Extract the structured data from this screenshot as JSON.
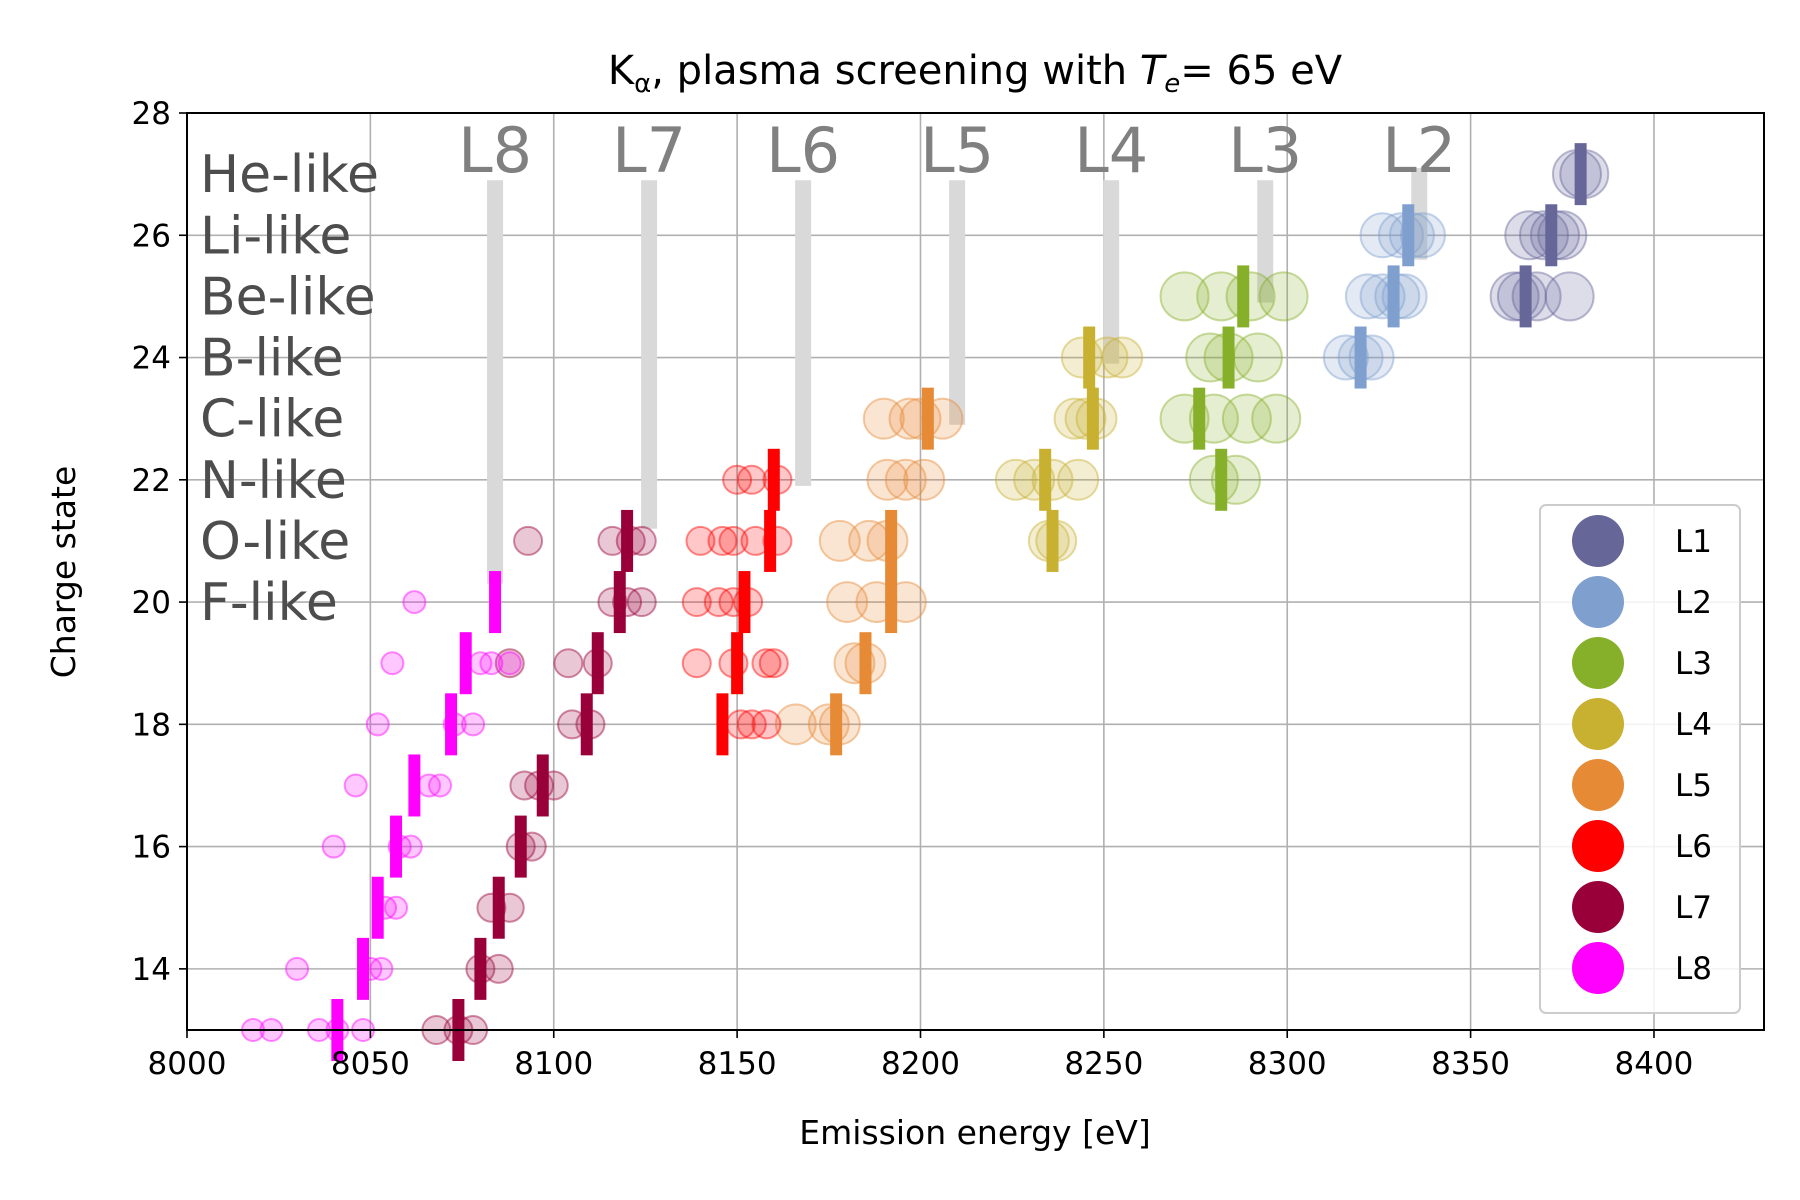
{
  "chart_data": {
    "type": "scatter",
    "title_main": "K",
    "title_sub": "α",
    "title_mid": ", plasma screening with ",
    "title_var": "T",
    "title_var_sub": "e",
    "title_end": "= 65 eV",
    "xlabel": "Emission energy [eV]",
    "ylabel": "Charge state",
    "xlim": [
      8000,
      8430
    ],
    "ylim": [
      13,
      28
    ],
    "xticks": [
      "8000",
      "8050",
      "8100",
      "8150",
      "8200",
      "8250",
      "8300",
      "8350",
      "8400"
    ],
    "yticks": [
      "14",
      "16",
      "18",
      "20",
      "22",
      "24",
      "26",
      "28"
    ],
    "grid": true,
    "legend_position": "lower-right",
    "colors": {
      "L1": "#666699",
      "L2": "#7f9fcf",
      "L3": "#87b02a",
      "L4": "#c8b030",
      "L5": "#e68a35",
      "L6": "#ff0000",
      "L7": "#99003a",
      "L8": "#ff00ff",
      "edge_bar": "#d9d9d9"
    },
    "ion_labels": [
      "He-like",
      "Li-like",
      "Be-like",
      "B-like",
      "C-like",
      "N-like",
      "O-like",
      "F-like"
    ],
    "ion_label_charges": [
      27,
      26,
      25,
      24,
      23,
      22,
      21,
      20
    ],
    "edge_labels": [
      {
        "name": "L8",
        "x": 8084
      },
      {
        "name": "L7",
        "x": 8126
      },
      {
        "name": "L6",
        "x": 8168
      },
      {
        "name": "L5",
        "x": 8210
      },
      {
        "name": "L4",
        "x": 8252
      },
      {
        "name": "L3",
        "x": 8294
      },
      {
        "name": "L2",
        "x": 8336
      }
    ],
    "edge_bars": [
      {
        "x": 8084,
        "y0": 20.3,
        "y1": 26.9
      },
      {
        "x": 8126,
        "y0": 21.2,
        "y1": 26.9
      },
      {
        "x": 8168,
        "y0": 21.9,
        "y1": 26.9
      },
      {
        "x": 8210,
        "y0": 22.9,
        "y1": 26.9
      },
      {
        "x": 8252,
        "y0": 23.9,
        "y1": 26.9
      },
      {
        "x": 8294,
        "y0": 24.9,
        "y1": 26.9
      },
      {
        "x": 8336,
        "y0": 25.6,
        "y1": 27.1
      }
    ],
    "series": [
      {
        "name": "L1",
        "means": [
          [
            8380,
            27
          ],
          [
            8372,
            26
          ],
          [
            8365,
            25
          ]
        ],
        "points": [
          [
            8381,
            27
          ],
          [
            8379,
            27
          ],
          [
            8366,
            26
          ],
          [
            8370,
            26
          ],
          [
            8373,
            26
          ],
          [
            8375,
            26
          ],
          [
            8362,
            25
          ],
          [
            8364,
            25
          ],
          [
            8368,
            25
          ],
          [
            8377,
            25
          ]
        ]
      },
      {
        "name": "L2",
        "means": [
          [
            8333,
            26
          ],
          [
            8329,
            25
          ],
          [
            8320,
            24
          ]
        ],
        "points": [
          [
            8326,
            26
          ],
          [
            8331,
            26
          ],
          [
            8334,
            26
          ],
          [
            8337,
            26
          ],
          [
            8322,
            25
          ],
          [
            8326,
            25
          ],
          [
            8330,
            25
          ],
          [
            8332,
            25
          ],
          [
            8316,
            24
          ],
          [
            8320,
            24
          ],
          [
            8323,
            24
          ]
        ]
      },
      {
        "name": "L3",
        "means": [
          [
            8288,
            25
          ],
          [
            8284,
            24
          ],
          [
            8276,
            23
          ],
          [
            8282,
            22
          ]
        ],
        "points": [
          [
            8272,
            25
          ],
          [
            8282,
            25
          ],
          [
            8290,
            25
          ],
          [
            8299,
            25
          ],
          [
            8279,
            24
          ],
          [
            8284,
            24
          ],
          [
            8292,
            24
          ],
          [
            8272,
            23
          ],
          [
            8280,
            23
          ],
          [
            8289,
            23
          ],
          [
            8297,
            23
          ],
          [
            8280,
            22
          ],
          [
            8286,
            22
          ]
        ]
      },
      {
        "name": "L4",
        "means": [
          [
            8246,
            24
          ],
          [
            8247,
            23
          ],
          [
            8234,
            22
          ],
          [
            8236,
            21
          ]
        ],
        "points": [
          [
            8244,
            24
          ],
          [
            8251,
            24
          ],
          [
            8255,
            24
          ],
          [
            8242,
            23
          ],
          [
            8245,
            23
          ],
          [
            8248,
            23
          ],
          [
            8226,
            22
          ],
          [
            8231,
            22
          ],
          [
            8236,
            22
          ],
          [
            8243,
            22
          ],
          [
            8235,
            21
          ],
          [
            8237,
            21
          ]
        ]
      },
      {
        "name": "L5",
        "means": [
          [
            8202,
            23
          ],
          [
            8192,
            21
          ],
          [
            8192,
            20
          ],
          [
            8185,
            19
          ],
          [
            8177,
            18
          ]
        ],
        "points": [
          [
            8190,
            23
          ],
          [
            8197,
            23
          ],
          [
            8200,
            23
          ],
          [
            8206,
            23
          ],
          [
            8191,
            22
          ],
          [
            8196,
            22
          ],
          [
            8201,
            22
          ],
          [
            8178,
            21
          ],
          [
            8186,
            21
          ],
          [
            8191,
            21
          ],
          [
            8180,
            20
          ],
          [
            8188,
            20
          ],
          [
            8196,
            20
          ],
          [
            8182,
            19
          ],
          [
            8185,
            19
          ],
          [
            8166,
            18
          ],
          [
            8175,
            18
          ],
          [
            8178,
            18
          ]
        ]
      },
      {
        "name": "L6",
        "means": [
          [
            8160,
            22
          ],
          [
            8159,
            21
          ],
          [
            8152,
            20
          ],
          [
            8150,
            19
          ],
          [
            8146,
            18
          ]
        ],
        "points": [
          [
            8150,
            22
          ],
          [
            8154,
            22
          ],
          [
            8161,
            22
          ],
          [
            8140,
            21
          ],
          [
            8146,
            21
          ],
          [
            8149,
            21
          ],
          [
            8155,
            21
          ],
          [
            8161,
            21
          ],
          [
            8139,
            20
          ],
          [
            8145,
            20
          ],
          [
            8149,
            20
          ],
          [
            8153,
            20
          ],
          [
            8139,
            19
          ],
          [
            8149,
            19
          ],
          [
            8158,
            19
          ],
          [
            8160,
            19
          ],
          [
            8151,
            18
          ],
          [
            8154,
            18
          ],
          [
            8158,
            18
          ]
        ]
      },
      {
        "name": "L7",
        "means": [
          [
            8120,
            21
          ],
          [
            8118,
            20
          ],
          [
            8112,
            19
          ],
          [
            8109,
            18
          ],
          [
            8097,
            17
          ],
          [
            8091,
            16
          ],
          [
            8085,
            15
          ],
          [
            8080,
            14
          ],
          [
            8074,
            13
          ]
        ],
        "points": [
          [
            8093,
            21
          ],
          [
            8116,
            21
          ],
          [
            8121,
            21
          ],
          [
            8124,
            21
          ],
          [
            8116,
            20
          ],
          [
            8120,
            20
          ],
          [
            8124,
            20
          ],
          [
            8088,
            19
          ],
          [
            8104,
            19
          ],
          [
            8112,
            19
          ],
          [
            8105,
            18
          ],
          [
            8110,
            18
          ],
          [
            8092,
            17
          ],
          [
            8096,
            17
          ],
          [
            8100,
            17
          ],
          [
            8091,
            16
          ],
          [
            8094,
            16
          ],
          [
            8083,
            15
          ],
          [
            8088,
            15
          ],
          [
            8080,
            14
          ],
          [
            8085,
            14
          ],
          [
            8068,
            13
          ],
          [
            8074,
            13
          ],
          [
            8078,
            13
          ]
        ]
      },
      {
        "name": "L8",
        "means": [
          [
            8084,
            20
          ],
          [
            8076,
            19
          ],
          [
            8072,
            18
          ],
          [
            8062,
            17
          ],
          [
            8057,
            16
          ],
          [
            8052,
            15
          ],
          [
            8048,
            14
          ],
          [
            8041,
            13
          ]
        ],
        "points": [
          [
            8062,
            20
          ],
          [
            8056,
            19
          ],
          [
            8080,
            19
          ],
          [
            8083,
            19
          ],
          [
            8088,
            19
          ],
          [
            8052,
            18
          ],
          [
            8073,
            18
          ],
          [
            8078,
            18
          ],
          [
            8046,
            17
          ],
          [
            8066,
            17
          ],
          [
            8069,
            17
          ],
          [
            8040,
            16
          ],
          [
            8058,
            16
          ],
          [
            8061,
            16
          ],
          [
            8054,
            15
          ],
          [
            8057,
            15
          ],
          [
            8030,
            14
          ],
          [
            8050,
            14
          ],
          [
            8053,
            14
          ],
          [
            8018,
            13
          ],
          [
            8023,
            13
          ],
          [
            8036,
            13
          ],
          [
            8041,
            13
          ],
          [
            8048,
            13
          ]
        ]
      }
    ]
  }
}
